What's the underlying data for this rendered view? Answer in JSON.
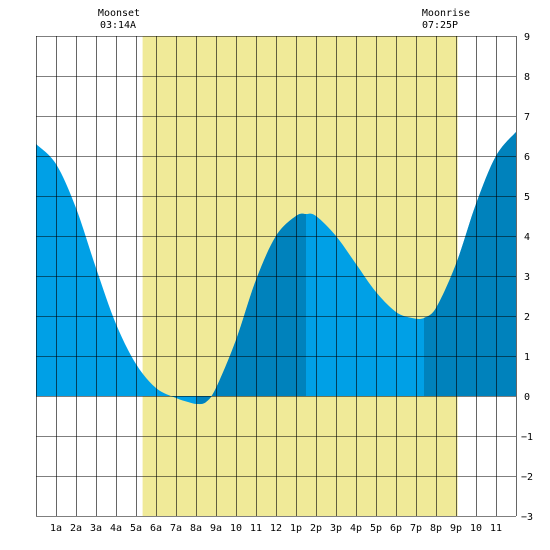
{
  "chart_data": {
    "type": "area",
    "title": "",
    "xlabel": "",
    "ylabel": "",
    "x_unit": "hour of day",
    "xlim": [
      0,
      24
    ],
    "ylim": [
      -3,
      9
    ],
    "grid": true,
    "x_tick_labels": [
      {
        "x": 1,
        "label": "1a"
      },
      {
        "x": 2,
        "label": "2a"
      },
      {
        "x": 3,
        "label": "3a"
      },
      {
        "x": 4,
        "label": "4a"
      },
      {
        "x": 5,
        "label": "5a"
      },
      {
        "x": 6,
        "label": "6a"
      },
      {
        "x": 7,
        "label": "7a"
      },
      {
        "x": 8,
        "label": "8a"
      },
      {
        "x": 9,
        "label": "9a"
      },
      {
        "x": 10,
        "label": "10"
      },
      {
        "x": 11,
        "label": "11"
      },
      {
        "x": 12,
        "label": "12"
      },
      {
        "x": 13,
        "label": "1p"
      },
      {
        "x": 14,
        "label": "2p"
      },
      {
        "x": 15,
        "label": "3p"
      },
      {
        "x": 16,
        "label": "4p"
      },
      {
        "x": 17,
        "label": "5p"
      },
      {
        "x": 18,
        "label": "6p"
      },
      {
        "x": 19,
        "label": "7p"
      },
      {
        "x": 20,
        "label": "8p"
      },
      {
        "x": 21,
        "label": "9p"
      },
      {
        "x": 22,
        "label": "10"
      },
      {
        "x": 23,
        "label": "11"
      }
    ],
    "y_ticks": [
      -3,
      -2,
      -1,
      0,
      1,
      2,
      3,
      4,
      5,
      6,
      7,
      8,
      9
    ],
    "daylight": {
      "start": 5.33,
      "end": 21.08,
      "color": "#f0ea98"
    },
    "colors": {
      "water_light": "#00a0e6",
      "water_dark": "#0082bc",
      "grid": "#000000"
    },
    "series": [
      {
        "values_x": [
          0,
          1,
          2,
          3,
          4,
          5,
          6,
          7,
          7.6,
          8.05,
          8.5,
          9,
          10,
          11,
          12,
          13,
          13.5,
          14,
          15,
          16,
          17,
          18,
          18.8,
          19.4,
          20,
          21,
          22,
          23,
          24
        ],
        "values_y": [
          6.3,
          5.8,
          4.7,
          3.2,
          1.8,
          0.8,
          0.2,
          -0.05,
          -0.15,
          -0.2,
          -0.15,
          0.2,
          1.4,
          2.9,
          4.0,
          4.5,
          4.55,
          4.5,
          4.0,
          3.3,
          2.6,
          2.1,
          1.95,
          1.95,
          2.2,
          3.3,
          4.8,
          6.0,
          6.6
        ],
        "highlight_ranges": [
          [
            8.05,
            13.5
          ],
          [
            19.4,
            24
          ]
        ]
      }
    ]
  },
  "moon": {
    "moonset": {
      "label": "Moonset",
      "time": "03:14A",
      "x": 3.23
    },
    "moonrise": {
      "label": "Moonrise",
      "time": "07:25P",
      "x": 19.42
    }
  }
}
